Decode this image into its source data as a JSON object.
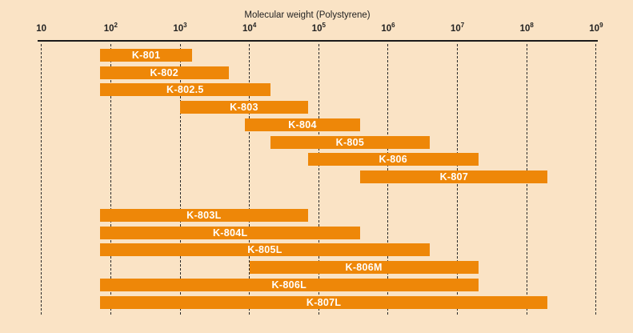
{
  "title": "Molecular weight (Polystyrene)",
  "colors": {
    "background": "#fae3c5",
    "bar": "#ee8708",
    "bar_label": "#ffffff",
    "axis_line": "#1a1a1a",
    "gridline": "#2b2b2b",
    "text": "#222222"
  },
  "axis": {
    "ticks": [
      {
        "value": 10,
        "base": "10",
        "exp": ""
      },
      {
        "value": 100,
        "base": "10",
        "exp": "2"
      },
      {
        "value": 1000,
        "base": "10",
        "exp": "3"
      },
      {
        "value": 10000,
        "base": "10",
        "exp": "4"
      },
      {
        "value": 100000,
        "base": "10",
        "exp": "5"
      },
      {
        "value": 1000000,
        "base": "10",
        "exp": "6"
      },
      {
        "value": 10000000,
        "base": "10",
        "exp": "7"
      },
      {
        "value": 100000000,
        "base": "10",
        "exp": "8"
      },
      {
        "value": 1000000000,
        "base": "10",
        "exp": "9"
      }
    ]
  },
  "chart_data": {
    "type": "bar",
    "subtype": "horizontal-range-bars",
    "title": "Molecular weight (Polystyrene)",
    "xlabel": "Molecular weight (Polystyrene)",
    "xscale": "log",
    "xlim": [
      10,
      1000000000
    ],
    "grid": "dashed-vertical-per-decade",
    "legend": "none",
    "series": [
      {
        "name": "K-801",
        "min": 70,
        "max": 1500,
        "group": 1
      },
      {
        "name": "K-802",
        "min": 70,
        "max": 5000,
        "group": 1
      },
      {
        "name": "K-802.5",
        "min": 70,
        "max": 20000,
        "group": 1
      },
      {
        "name": "K-803",
        "min": 1000,
        "max": 70000,
        "group": 1
      },
      {
        "name": "K-804",
        "min": 8500,
        "max": 400000,
        "group": 1
      },
      {
        "name": "K-805",
        "min": 20000,
        "max": 4000000,
        "group": 1
      },
      {
        "name": "K-806",
        "min": 70000,
        "max": 20000000,
        "group": 1
      },
      {
        "name": "K-807",
        "min": 400000,
        "max": 200000000,
        "group": 1
      },
      {
        "name": "K-803L",
        "min": 70,
        "max": 70000,
        "group": 2
      },
      {
        "name": "K-804L",
        "min": 70,
        "max": 400000,
        "group": 2
      },
      {
        "name": "K-805L",
        "min": 70,
        "max": 4000000,
        "group": 2
      },
      {
        "name": "K-806M",
        "min": 10000,
        "max": 20000000,
        "group": 2
      },
      {
        "name": "K-806L",
        "min": 70,
        "max": 20000000,
        "group": 2
      },
      {
        "name": "K-807L",
        "min": 70,
        "max": 200000000,
        "group": 2
      }
    ]
  }
}
